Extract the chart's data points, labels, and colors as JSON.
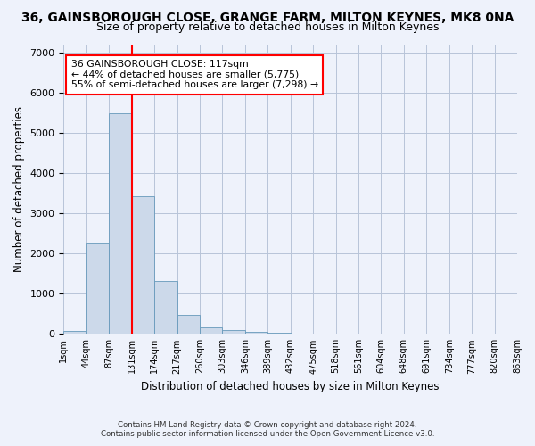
{
  "title": "36, GAINSBOROUGH CLOSE, GRANGE FARM, MILTON KEYNES, MK8 0NA",
  "subtitle": "Size of property relative to detached houses in Milton Keynes",
  "xlabel": "Distribution of detached houses by size in Milton Keynes",
  "ylabel": "Number of detached properties",
  "bar_color": "#ccd9ea",
  "bar_edge_color": "#6699bb",
  "red_line_bin_index": 3,
  "annotation_title": "36 GAINSBOROUGH CLOSE: 117sqm",
  "annotation_line1": "← 44% of detached houses are smaller (5,775)",
  "annotation_line2": "55% of semi-detached houses are larger (7,298) →",
  "footer1": "Contains HM Land Registry data © Crown copyright and database right 2024.",
  "footer2": "Contains public sector information licensed under the Open Government Licence v3.0.",
  "bin_labels": [
    "1sqm",
    "44sqm",
    "87sqm",
    "131sqm",
    "174sqm",
    "217sqm",
    "260sqm",
    "303sqm",
    "346sqm",
    "389sqm",
    "432sqm",
    "475sqm",
    "518sqm",
    "561sqm",
    "604sqm",
    "648sqm",
    "691sqm",
    "734sqm",
    "777sqm",
    "820sqm",
    "863sqm"
  ],
  "bar_heights": [
    75,
    2280,
    5480,
    3430,
    1320,
    470,
    160,
    100,
    60,
    40,
    0,
    0,
    0,
    0,
    0,
    0,
    0,
    0,
    0,
    0
  ],
  "ylim": [
    0,
    7200
  ],
  "yticks": [
    0,
    1000,
    2000,
    3000,
    4000,
    5000,
    6000,
    7000
  ],
  "bg_color": "#eef2fb",
  "axes_bg_color": "#eef2fb",
  "grid_color": "#b8c4d8",
  "title_fontsize": 10,
  "subtitle_fontsize": 9
}
